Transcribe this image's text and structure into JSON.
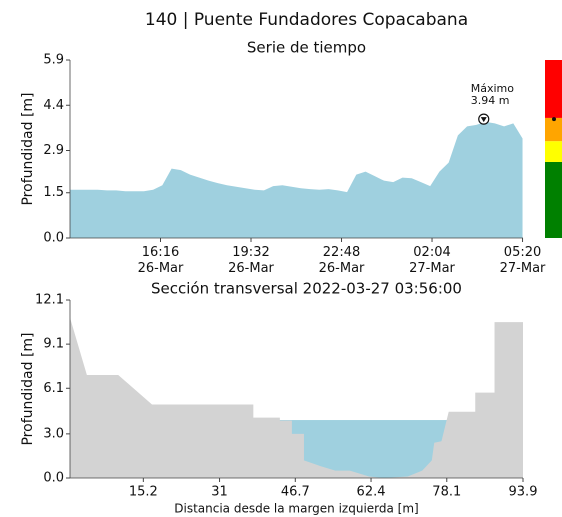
{
  "chart_data": [
    {
      "type": "area",
      "title": "140 | Puente Fundadores Copacabana",
      "subtitle": "Serie de tiempo",
      "ylabel": "Profundidad [m]",
      "color": "#9fd0df",
      "x": [
        "26-Mar 13:00",
        "26-Mar 13:20",
        "26-Mar 13:40",
        "26-Mar 14:00",
        "26-Mar 14:20",
        "26-Mar 14:40",
        "26-Mar 15:00",
        "26-Mar 15:20",
        "26-Mar 15:40",
        "26-Mar 16:00",
        "26-Mar 16:20",
        "26-Mar 16:40",
        "26-Mar 17:00",
        "26-Mar 17:20",
        "26-Mar 17:40",
        "26-Mar 18:00",
        "26-Mar 18:20",
        "26-Mar 18:40",
        "26-Mar 19:00",
        "26-Mar 19:20",
        "26-Mar 19:40",
        "26-Mar 20:00",
        "26-Mar 20:20",
        "26-Mar 20:40",
        "26-Mar 21:00",
        "26-Mar 21:20",
        "26-Mar 21:40",
        "26-Mar 22:00",
        "26-Mar 22:20",
        "26-Mar 22:40",
        "26-Mar 23:00",
        "26-Mar 23:20",
        "26-Mar 23:40",
        "27-Mar 00:00",
        "27-Mar 00:20",
        "27-Mar 00:40",
        "27-Mar 01:00",
        "27-Mar 01:20",
        "27-Mar 01:40",
        "27-Mar 02:00",
        "27-Mar 02:20",
        "27-Mar 02:40",
        "27-Mar 03:00",
        "27-Mar 03:20",
        "27-Mar 03:40",
        "27-Mar 04:00",
        "27-Mar 04:20",
        "27-Mar 04:40",
        "27-Mar 05:00",
        "27-Mar 05:20"
      ],
      "values": [
        1.6,
        1.6,
        1.6,
        1.6,
        1.58,
        1.58,
        1.55,
        1.55,
        1.55,
        1.6,
        1.75,
        2.3,
        2.25,
        2.1,
        2.0,
        1.9,
        1.82,
        1.75,
        1.7,
        1.65,
        1.6,
        1.58,
        1.72,
        1.75,
        1.7,
        1.65,
        1.62,
        1.6,
        1.62,
        1.58,
        1.52,
        2.1,
        2.2,
        2.05,
        1.9,
        1.85,
        2.0,
        1.98,
        1.85,
        1.72,
        2.2,
        2.5,
        3.4,
        3.7,
        3.75,
        3.85,
        3.8,
        3.7,
        3.8,
        3.3
      ],
      "xlim": [
        "26-Mar 13:00",
        "27-Mar 05:21"
      ],
      "xticks": [
        {
          "value": "26-Mar 16:16",
          "label": "16:16\n26-Mar"
        },
        {
          "value": "26-Mar 19:32",
          "label": "19:32\n26-Mar"
        },
        {
          "value": "26-Mar 22:48",
          "label": "22:48\n26-Mar"
        },
        {
          "value": "27-Mar 02:04",
          "label": "02:04\n27-Mar"
        },
        {
          "value": "27-Mar 05:20",
          "label": "05:20\n27-Mar"
        }
      ],
      "ylim": [
        0,
        5.9
      ],
      "yticks": [
        {
          "value": 0,
          "label": "0.0"
        },
        1.5,
        2.9,
        4.4,
        5.9
      ],
      "annotation": {
        "x": "27-Mar 03:56",
        "value": 3.94,
        "label": "Máximo",
        "value_label": "3.94 m"
      },
      "thresholds": [
        {
          "color": "#008000",
          "from": 0,
          "to": 2.52
        },
        {
          "color": "#ffff00",
          "from": 2.52,
          "to": 3.21
        },
        {
          "color": "#ffa500",
          "from": 3.21,
          "to": 3.98
        },
        {
          "color": "#ff0000",
          "from": 3.98,
          "to": 5.9
        }
      ]
    },
    {
      "type": "section",
      "title": "Sección transversal 2022-03-27 03:56:00",
      "xlabel": "Distancia desde la margen izquierda [m]",
      "ylabel": "Profundidad [m]",
      "color": "#d3d3d3",
      "water_color": "#9fd0df",
      "water_level": 3.94,
      "x": [
        0,
        3.5,
        10,
        17,
        38,
        38,
        43.5,
        43.5,
        46,
        46,
        48.5,
        48.5,
        52,
        55,
        58,
        62,
        65,
        70,
        73,
        75,
        75.5,
        77,
        78.5,
        84,
        84,
        88,
        88,
        93.9
      ],
      "values": [
        10.9,
        7.0,
        7.0,
        5.0,
        5.0,
        4.1,
        4.1,
        3.9,
        3.9,
        3.0,
        3.0,
        1.2,
        0.8,
        0.5,
        0.5,
        0.1,
        0.0,
        0.1,
        0.5,
        1.2,
        2.4,
        2.5,
        4.5,
        4.5,
        5.8,
        5.8,
        10.6,
        10.6
      ],
      "xlim": [
        0,
        93.9
      ],
      "xticks": [
        15.2,
        31.0,
        46.7,
        62.4,
        78.1,
        93.9
      ],
      "ylim": [
        0,
        12.1
      ],
      "yticks": [
        {
          "value": 0,
          "label": "0.0"
        },
        {
          "value": 3,
          "label": "3.0"
        },
        6.1,
        9.1,
        12.1
      ]
    }
  ]
}
